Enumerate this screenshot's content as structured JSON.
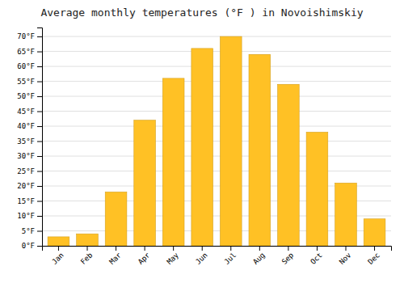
{
  "chart_data": {
    "type": "bar",
    "title": "Average monthly temperatures (°F ) in Novoishimskiy",
    "categories": [
      "Jan",
      "Feb",
      "Mar",
      "Apr",
      "May",
      "Jun",
      "Jul",
      "Aug",
      "Sep",
      "Oct",
      "Nov",
      "Dec"
    ],
    "values": [
      3,
      4,
      18,
      42,
      56,
      66,
      70,
      64,
      54,
      38,
      21,
      9
    ],
    "color": "#FFC125",
    "ylim": [
      0,
      73
    ],
    "yticks": [
      {
        "value": 0,
        "label": "0°F"
      },
      {
        "value": 5,
        "label": "5°F"
      },
      {
        "value": 10,
        "label": "10°F"
      },
      {
        "value": 15,
        "label": "15°F"
      },
      {
        "value": 20,
        "label": "20°F"
      },
      {
        "value": 25,
        "label": "25°F"
      },
      {
        "value": 30,
        "label": "30°F"
      },
      {
        "value": 35,
        "label": "35°F"
      },
      {
        "value": 40,
        "label": "40°F"
      },
      {
        "value": 45,
        "label": "45°F"
      },
      {
        "value": 50,
        "label": "50°F"
      },
      {
        "value": 55,
        "label": "55°F"
      },
      {
        "value": 60,
        "label": "60°F"
      },
      {
        "value": 65,
        "label": "65°F"
      },
      {
        "value": 70,
        "label": "70°F"
      }
    ],
    "grid": true
  }
}
